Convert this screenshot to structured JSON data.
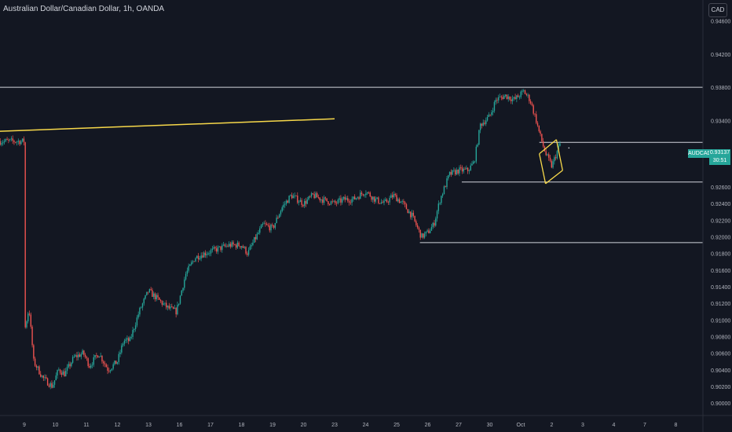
{
  "header": {
    "symbol_title": "Australian Dollar/Canadian Dollar, 1h, OANDA",
    "currency": "CAD"
  },
  "price_tag": {
    "symbol": "AUDCAD",
    "price": "0.93137",
    "countdown": "30:51"
  },
  "colors": {
    "background": "#131722",
    "up": "#26a69a",
    "down": "#ef5350",
    "line": "#d1d4dc",
    "trendline": "#f7d84a",
    "channel": "#f7d84a"
  },
  "chart_data": {
    "type": "candlestick",
    "symbol": "AUDCAD",
    "interval": "1h",
    "source": "OANDA",
    "y_range": [
      0.8985,
      0.9485
    ],
    "y_ticks": [
      "0.94600",
      "0.94200",
      "0.93800",
      "0.93400",
      "0.93137",
      "0.92600",
      "0.92400",
      "0.92200",
      "0.92000",
      "0.91800",
      "0.91600",
      "0.91400",
      "0.91200",
      "0.91000",
      "0.90800",
      "0.90600",
      "0.90400",
      "0.90200",
      "0.90000"
    ],
    "y_tick_values": [
      0.946,
      0.942,
      0.938,
      0.934,
      0.93137,
      0.926,
      0.924,
      0.922,
      0.92,
      0.918,
      0.916,
      0.914,
      0.912,
      0.91,
      0.908,
      0.906,
      0.904,
      0.902,
      0.9
    ],
    "x_ticks": [
      "9",
      "10",
      "11",
      "12",
      "13",
      "16",
      "17",
      "18",
      "19",
      "20",
      "23",
      "24",
      "25",
      "26",
      "27",
      "30",
      "Oct",
      "2",
      "3",
      "4",
      "7",
      "8"
    ],
    "x_tick_positions": [
      0,
      1,
      2,
      3,
      4,
      5,
      6,
      7,
      8,
      9,
      10,
      11,
      12,
      13,
      14,
      15,
      16,
      17,
      18,
      19,
      20,
      21
    ],
    "ohlc_path": [
      [
        0,
        0.9085
      ],
      [
        0.15,
        0.9115
      ],
      [
        0.3,
        0.905
      ],
      [
        0.6,
        0.903
      ],
      [
        0.9,
        0.902
      ],
      [
        1.1,
        0.904
      ],
      [
        1.3,
        0.9035
      ],
      [
        1.6,
        0.9055
      ],
      [
        1.9,
        0.906
      ],
      [
        2.1,
        0.9045
      ],
      [
        2.4,
        0.906
      ],
      [
        2.7,
        0.904
      ],
      [
        3.0,
        0.905
      ],
      [
        3.2,
        0.9075
      ],
      [
        3.4,
        0.9075
      ],
      [
        3.7,
        0.911
      ],
      [
        4.0,
        0.9135
      ],
      [
        4.3,
        0.9125
      ],
      [
        4.6,
        0.9115
      ],
      [
        4.9,
        0.911
      ],
      [
        5.2,
        0.9155
      ],
      [
        5.5,
        0.9175
      ],
      [
        5.8,
        0.918
      ],
      [
        6.2,
        0.9185
      ],
      [
        6.6,
        0.919
      ],
      [
        7.0,
        0.919
      ],
      [
        7.2,
        0.918
      ],
      [
        7.4,
        0.9195
      ],
      [
        7.7,
        0.9215
      ],
      [
        8.0,
        0.921
      ],
      [
        8.3,
        0.9235
      ],
      [
        8.6,
        0.925
      ],
      [
        9.0,
        0.924
      ],
      [
        9.3,
        0.925
      ],
      [
        9.6,
        0.9245
      ],
      [
        10.0,
        0.924
      ],
      [
        10.3,
        0.9245
      ],
      [
        10.6,
        0.9245
      ],
      [
        11.0,
        0.9255
      ],
      [
        11.3,
        0.9245
      ],
      [
        11.6,
        0.924
      ],
      [
        11.9,
        0.925
      ],
      [
        12.2,
        0.924
      ],
      [
        12.5,
        0.9225
      ],
      [
        12.8,
        0.92
      ],
      [
        13.0,
        0.9205
      ],
      [
        13.2,
        0.9215
      ],
      [
        13.4,
        0.9245
      ],
      [
        13.7,
        0.9275
      ],
      [
        14.0,
        0.928
      ],
      [
        14.3,
        0.928
      ],
      [
        14.5,
        0.929
      ],
      [
        14.7,
        0.9335
      ],
      [
        15.0,
        0.9345
      ],
      [
        15.2,
        0.9365
      ],
      [
        15.5,
        0.937
      ],
      [
        15.8,
        0.9365
      ],
      [
        16.1,
        0.9375
      ],
      [
        16.3,
        0.9365
      ],
      [
        16.5,
        0.934
      ],
      [
        16.6,
        0.9325
      ],
      [
        16.8,
        0.93
      ],
      [
        17.0,
        0.9285
      ],
      [
        17.15,
        0.93
      ],
      [
        17.3,
        0.9315
      ]
    ],
    "horizontal_levels": [
      {
        "price": 0.938,
        "from_x": -0.8,
        "label": ""
      },
      {
        "price": 0.93137,
        "from_x": 16.6,
        "label": ""
      },
      {
        "price": 0.9266,
        "from_x": 14.1,
        "label": ""
      },
      {
        "price": 0.9193,
        "from_x": 12.75,
        "label": ""
      }
    ],
    "trendline": {
      "from": [
        -0.8,
        0.9327
      ],
      "to": [
        10.0,
        0.9342
      ]
    },
    "channel": {
      "upper": [
        [
          16.6,
          0.93
        ],
        [
          17.15,
          0.9317
        ]
      ],
      "lower": [
        [
          16.8,
          0.9264
        ],
        [
          17.35,
          0.928
        ]
      ],
      "link": [
        [
          16.8,
          0.9264
        ],
        [
          16.6,
          0.93
        ]
      ],
      "link2": [
        [
          17.15,
          0.9317
        ],
        [
          17.35,
          0.928
        ]
      ]
    }
  }
}
